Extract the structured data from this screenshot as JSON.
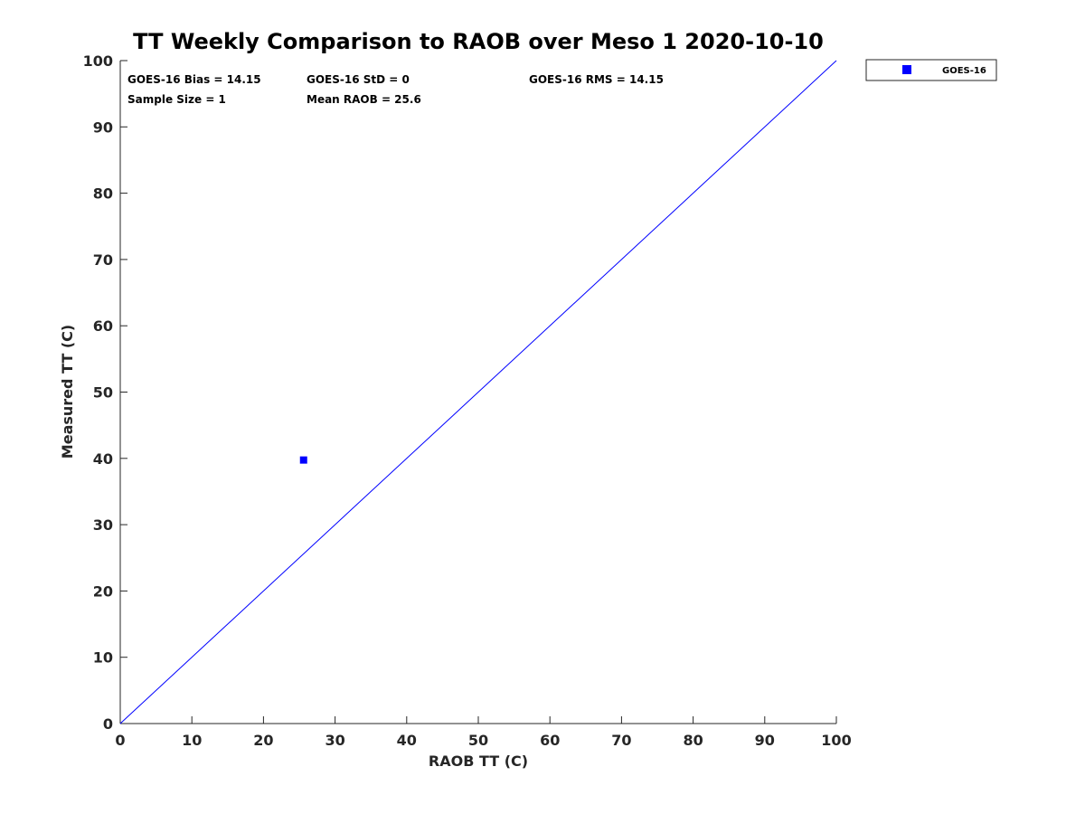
{
  "chart_data": {
    "type": "scatter",
    "title": "TT Weekly Comparison to RAOB over Meso 1 2020-10-10",
    "xlabel": "RAOB TT (C)",
    "ylabel": "Measured TT (C)",
    "xlim": [
      0,
      100
    ],
    "ylim": [
      0,
      100
    ],
    "x_ticks": [
      "0",
      "10",
      "20",
      "30",
      "40",
      "50",
      "60",
      "70",
      "80",
      "90",
      "100"
    ],
    "y_ticks": [
      "0",
      "10",
      "20",
      "30",
      "40",
      "50",
      "60",
      "70",
      "80",
      "90",
      "100"
    ],
    "grid": false,
    "legend_position": "top-right-outside",
    "series": [
      {
        "name": "GOES-16",
        "marker": "square",
        "color": "#0000ff",
        "points": [
          {
            "x": 25.6,
            "y": 39.75
          }
        ]
      }
    ],
    "reference_line": {
      "name": "one-to-one",
      "color": "#0000ff",
      "x": [
        0,
        100
      ],
      "y": [
        0,
        100
      ]
    },
    "stats": {
      "bias": "GOES-16 Bias = 14.15",
      "std": "GOES-16 StD = 0",
      "rms": "GOES-16 RMS = 14.15",
      "sample_size": "Sample Size = 1",
      "mean_raob": "Mean RAOB = 25.6"
    }
  }
}
